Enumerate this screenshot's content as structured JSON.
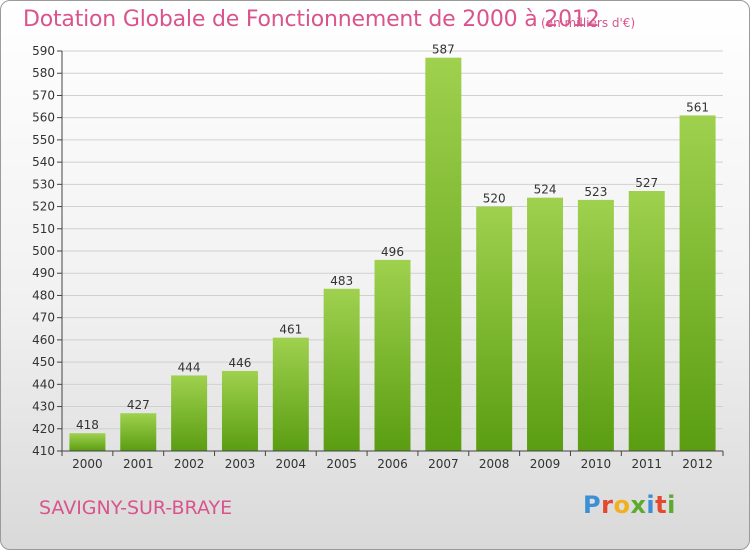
{
  "header": {
    "title": "Dotation Globale de Fonctionnement de 2000 à 2012",
    "unit": "(en milliers d'€)"
  },
  "footer": {
    "commune": "SAVIGNY-SUR-BRAYE",
    "logo_letters": [
      "P",
      "r",
      "o",
      "x",
      "i",
      "t",
      "i"
    ]
  },
  "colors": {
    "title": "#d9548c",
    "bar_top": "#9fd14e",
    "bar_bottom": "#5a9d12",
    "grid": "#d0d0d0",
    "axis": "#444444"
  },
  "chart_data": {
    "type": "bar",
    "title": "Dotation Globale de Fonctionnement de 2000 à 2012",
    "unit": "(en milliers d'€)",
    "xlabel": "",
    "ylabel": "",
    "categories": [
      "2000",
      "2001",
      "2002",
      "2003",
      "2004",
      "2005",
      "2006",
      "2007",
      "2008",
      "2009",
      "2010",
      "2011",
      "2012"
    ],
    "values": [
      418,
      427,
      444,
      446,
      461,
      483,
      496,
      587,
      520,
      524,
      523,
      527,
      561
    ],
    "ylim": [
      410,
      590
    ],
    "ytick_step": 10,
    "grid": true,
    "legend": "none"
  }
}
